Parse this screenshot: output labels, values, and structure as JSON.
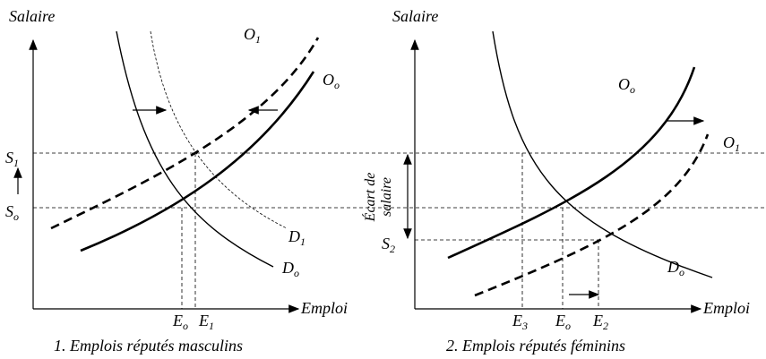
{
  "panels": [
    {
      "y_axis_label": "Salaire",
      "x_axis_label": "Emploi",
      "caption": "1. Emplois réputés masculins",
      "labels": {
        "s1": {
          "base": "S",
          "sub": "1"
        },
        "so": {
          "base": "S",
          "sub": "o"
        },
        "o1": {
          "base": "O",
          "sub": "1"
        },
        "oo": {
          "base": "O",
          "sub": "o"
        },
        "d1": {
          "base": "D",
          "sub": "1"
        },
        "do": {
          "base": "D",
          "sub": "o"
        },
        "eo": {
          "base": "E",
          "sub": "o"
        },
        "e1": {
          "base": "E",
          "sub": "1"
        }
      }
    },
    {
      "y_axis_label": "Salaire",
      "x_axis_label": "Emploi",
      "caption": "2. Emplois réputés féminins",
      "gap_label": [
        "Écart de",
        "salaire"
      ],
      "labels": {
        "s2": {
          "base": "S",
          "sub": "2"
        },
        "o1": {
          "base": "O",
          "sub": "1"
        },
        "oo": {
          "base": "O",
          "sub": "o"
        },
        "do": {
          "base": "D",
          "sub": "o"
        },
        "e3": {
          "base": "E",
          "sub": "3"
        },
        "eo": {
          "base": "E",
          "sub": "o"
        },
        "e2": {
          "base": "E",
          "sub": "2"
        }
      }
    }
  ]
}
